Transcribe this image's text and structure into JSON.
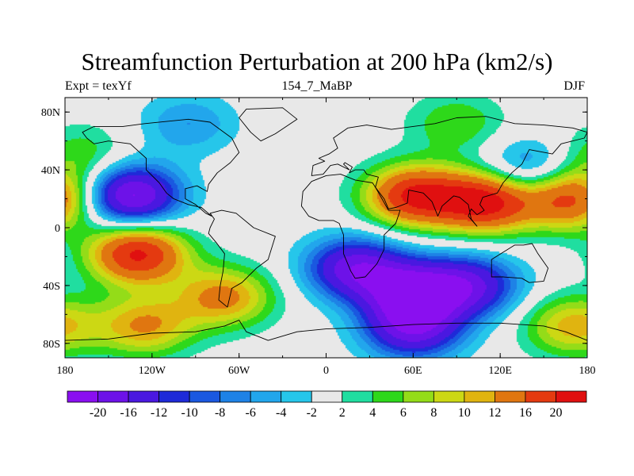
{
  "title": "Streamfunction Perturbation at 200 hPa (km2/s)",
  "left_label": "Expt = texYf",
  "center_label": "154_7_MaBP",
  "right_label": "DJF",
  "x_ticks": [
    "180",
    "120W",
    "60W",
    "0",
    "60E",
    "120E",
    "180"
  ],
  "y_ticks": [
    "80N",
    "40N",
    "0",
    "40S",
    "80S"
  ],
  "colorbar": {
    "labels": [
      "-20",
      "-16",
      "-12",
      "-10",
      "-8",
      "-6",
      "-4",
      "-2",
      "2",
      "4",
      "6",
      "8",
      "10",
      "12",
      "16",
      "20"
    ],
    "colors": [
      "#8a0ff0",
      "#6d12e8",
      "#4a18e0",
      "#1e2ad8",
      "#1a58e0",
      "#1e82e6",
      "#22a6ec",
      "#26c6ea",
      "#e8e8e8",
      "#20dea0",
      "#2ed81a",
      "#94dc18",
      "#ccd814",
      "#e0b410",
      "#e07610",
      "#e43a10",
      "#e01010"
    ]
  },
  "chart_data": {
    "type": "heatmap",
    "title": "Streamfunction Perturbation at 200 hPa (km2/s)",
    "xlim": [
      -180,
      180
    ],
    "ylim": [
      -90,
      90
    ],
    "contour_levels": [
      -20,
      -16,
      -12,
      -10,
      -8,
      -6,
      -4,
      -2,
      2,
      4,
      6,
      8,
      10,
      12,
      16,
      20
    ],
    "features": [
      {
        "lon": -135,
        "lat": 22,
        "value": -22
      },
      {
        "lon": -95,
        "lat": 72,
        "value": -6
      },
      {
        "lon": 20,
        "lat": -28,
        "value": -18
      },
      {
        "lon": 60,
        "lat": -45,
        "value": -20
      },
      {
        "lon": 100,
        "lat": -40,
        "value": -15
      },
      {
        "lon": 60,
        "lat": -70,
        "value": -17
      },
      {
        "lon": 140,
        "lat": 40,
        "value": -9
      },
      {
        "lon": 110,
        "lat": 18,
        "value": 22
      },
      {
        "lon": 60,
        "lat": 22,
        "value": 20
      },
      {
        "lon": 170,
        "lat": 20,
        "value": 18
      },
      {
        "lon": -130,
        "lat": -18,
        "value": 21
      },
      {
        "lon": -70,
        "lat": -48,
        "value": 13
      },
      {
        "lon": -125,
        "lat": -68,
        "value": 12
      },
      {
        "lon": -170,
        "lat": 50,
        "value": 6
      },
      {
        "lon": 90,
        "lat": 72,
        "value": 6
      },
      {
        "lon": 170,
        "lat": -68,
        "value": 11
      }
    ]
  }
}
